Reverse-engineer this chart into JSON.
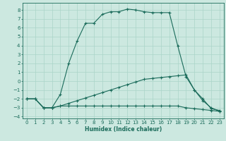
{
  "xlabel": "Humidex (Indice chaleur)",
  "bg_color": "#cce8e0",
  "line_color": "#1a6b5a",
  "grid_color": "#aad4c8",
  "xlim": [
    -0.5,
    23.5
  ],
  "ylim": [
    -4.2,
    8.8
  ],
  "xticks": [
    0,
    1,
    2,
    3,
    4,
    5,
    6,
    7,
    8,
    9,
    10,
    11,
    12,
    13,
    14,
    15,
    16,
    17,
    18,
    19,
    20,
    21,
    22,
    23
  ],
  "yticks": [
    -4,
    -3,
    -2,
    -1,
    0,
    1,
    2,
    3,
    4,
    5,
    6,
    7,
    8
  ],
  "line1_x": [
    0,
    1,
    2,
    3,
    4,
    5,
    6,
    7,
    8,
    9,
    10,
    11,
    12,
    13,
    14,
    15,
    16,
    17,
    18,
    19,
    20,
    21,
    22,
    23
  ],
  "line1_y": [
    -2.0,
    -2.0,
    -3.0,
    -3.0,
    -1.5,
    2.0,
    4.5,
    6.5,
    6.5,
    7.5,
    7.8,
    7.8,
    8.1,
    8.0,
    7.8,
    7.7,
    7.7,
    7.7,
    4.0,
    0.5,
    -1.0,
    -2.0,
    -3.1,
    -3.3
  ],
  "line2_x": [
    0,
    1,
    2,
    3,
    4,
    5,
    6,
    7,
    8,
    9,
    10,
    11,
    12,
    13,
    14,
    15,
    16,
    17,
    18,
    19,
    20,
    21,
    22,
    23
  ],
  "line2_y": [
    -2.0,
    -2.0,
    -3.0,
    -3.0,
    -2.8,
    -2.8,
    -2.8,
    -2.8,
    -2.8,
    -2.8,
    -2.8,
    -2.8,
    -2.8,
    -2.8,
    -2.8,
    -2.8,
    -2.8,
    -2.8,
    -2.8,
    -3.0,
    -3.1,
    -3.2,
    -3.3,
    -3.4
  ],
  "line3_x": [
    0,
    1,
    2,
    3,
    4,
    5,
    6,
    7,
    8,
    9,
    10,
    11,
    12,
    13,
    14,
    15,
    16,
    17,
    18,
    19,
    20,
    21,
    22,
    23
  ],
  "line3_y": [
    -2.0,
    -2.0,
    -3.0,
    -3.0,
    -2.8,
    -2.5,
    -2.2,
    -1.9,
    -1.6,
    -1.3,
    -1.0,
    -0.7,
    -0.4,
    -0.1,
    0.2,
    0.3,
    0.4,
    0.5,
    0.6,
    0.7,
    -1.0,
    -2.2,
    -3.0,
    -3.4
  ]
}
